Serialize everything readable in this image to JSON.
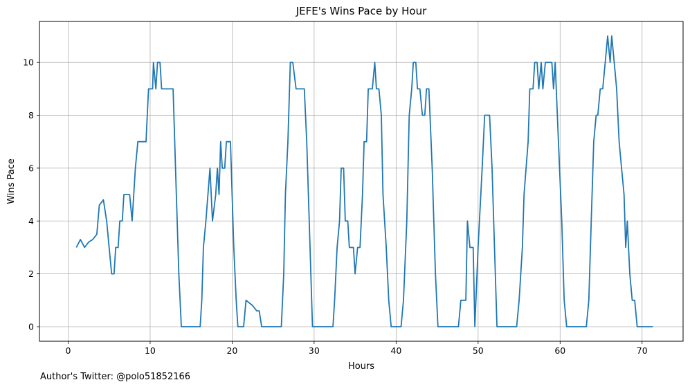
{
  "chart_data": {
    "type": "line",
    "title": "JEFE's Wins Pace by Hour",
    "xlabel": "Hours",
    "ylabel": "Wins Pace",
    "xlim": [
      -3.5,
      75
    ],
    "ylim": [
      -0.55,
      11.55
    ],
    "x_ticks": [
      0,
      10,
      20,
      30,
      40,
      50,
      60,
      70
    ],
    "y_ticks": [
      0,
      2,
      4,
      6,
      8,
      10
    ],
    "grid": true,
    "legend": "none",
    "series": [
      {
        "color": "#1f77b4",
        "points": [
          [
            1.0,
            3.0
          ],
          [
            1.5,
            3.3
          ],
          [
            2.0,
            3.0
          ],
          [
            2.5,
            3.2
          ],
          [
            3.0,
            3.3
          ],
          [
            3.5,
            3.5
          ],
          [
            3.8,
            4.6
          ],
          [
            4.3,
            4.8
          ],
          [
            4.7,
            4.0
          ],
          [
            5.0,
            3.0
          ],
          [
            5.3,
            2.0
          ],
          [
            5.6,
            2.0
          ],
          [
            5.8,
            3.0
          ],
          [
            6.1,
            3.0
          ],
          [
            6.3,
            4.0
          ],
          [
            6.6,
            4.0
          ],
          [
            6.8,
            5.0
          ],
          [
            7.2,
            5.0
          ],
          [
            7.5,
            5.0
          ],
          [
            7.8,
            4.0
          ],
          [
            8.2,
            6.0
          ],
          [
            8.5,
            7.0
          ],
          [
            9.0,
            7.0
          ],
          [
            9.5,
            7.0
          ],
          [
            9.8,
            9.0
          ],
          [
            10.3,
            9.0
          ],
          [
            10.4,
            10.0
          ],
          [
            10.7,
            9.0
          ],
          [
            10.9,
            10.0
          ],
          [
            11.2,
            10.0
          ],
          [
            11.4,
            9.0
          ],
          [
            12.0,
            9.0
          ],
          [
            12.5,
            9.0
          ],
          [
            12.8,
            9.0
          ],
          [
            13.2,
            5.0
          ],
          [
            13.5,
            2.0
          ],
          [
            13.8,
            0.0
          ],
          [
            14.5,
            0.0
          ],
          [
            15.5,
            0.0
          ],
          [
            16.1,
            0.0
          ],
          [
            16.3,
            1.0
          ],
          [
            16.5,
            3.0
          ],
          [
            16.8,
            4.0
          ],
          [
            17.3,
            6.0
          ],
          [
            17.6,
            4.0
          ],
          [
            18.0,
            5.0
          ],
          [
            18.2,
            6.0
          ],
          [
            18.4,
            5.0
          ],
          [
            18.6,
            7.0
          ],
          [
            18.8,
            6.0
          ],
          [
            19.1,
            6.0
          ],
          [
            19.3,
            7.0
          ],
          [
            19.8,
            7.0
          ],
          [
            20.2,
            3.0
          ],
          [
            20.5,
            1.0
          ],
          [
            20.7,
            0.0
          ],
          [
            21.4,
            0.0
          ],
          [
            21.7,
            1.0
          ],
          [
            22.5,
            0.8
          ],
          [
            23.0,
            0.6
          ],
          [
            23.3,
            0.6
          ],
          [
            23.6,
            0.0
          ],
          [
            24.5,
            0.0
          ],
          [
            25.5,
            0.0
          ],
          [
            26.0,
            0.0
          ],
          [
            26.3,
            2.0
          ],
          [
            26.5,
            5.0
          ],
          [
            26.8,
            7.0
          ],
          [
            27.1,
            10.0
          ],
          [
            27.4,
            10.0
          ],
          [
            27.8,
            9.0
          ],
          [
            28.4,
            9.0
          ],
          [
            28.8,
            9.0
          ],
          [
            29.1,
            7.0
          ],
          [
            29.5,
            3.0
          ],
          [
            29.8,
            0.0
          ],
          [
            30.5,
            0.0
          ],
          [
            31.5,
            0.0
          ],
          [
            32.3,
            0.0
          ],
          [
            32.5,
            1.0
          ],
          [
            32.8,
            3.0
          ],
          [
            33.1,
            4.0
          ],
          [
            33.3,
            6.0
          ],
          [
            33.6,
            6.0
          ],
          [
            33.8,
            4.0
          ],
          [
            34.1,
            4.0
          ],
          [
            34.3,
            3.0
          ],
          [
            34.8,
            3.0
          ],
          [
            35.0,
            2.0
          ],
          [
            35.3,
            3.0
          ],
          [
            35.6,
            3.0
          ],
          [
            35.9,
            5.0
          ],
          [
            36.1,
            7.0
          ],
          [
            36.4,
            7.0
          ],
          [
            36.6,
            9.0
          ],
          [
            37.1,
            9.0
          ],
          [
            37.4,
            10.0
          ],
          [
            37.6,
            9.0
          ],
          [
            37.9,
            9.0
          ],
          [
            38.2,
            8.0
          ],
          [
            38.4,
            5.0
          ],
          [
            38.8,
            3.0
          ],
          [
            39.1,
            1.0
          ],
          [
            39.4,
            0.0
          ],
          [
            40.2,
            0.0
          ],
          [
            40.3,
            0.0
          ],
          [
            40.6,
            0.0
          ],
          [
            40.9,
            1.0
          ],
          [
            41.3,
            4.0
          ],
          [
            41.6,
            8.0
          ],
          [
            41.9,
            9.0
          ],
          [
            42.1,
            10.0
          ],
          [
            42.4,
            10.0
          ],
          [
            42.6,
            9.0
          ],
          [
            42.9,
            9.0
          ],
          [
            43.2,
            8.0
          ],
          [
            43.5,
            8.0
          ],
          [
            43.7,
            9.0
          ],
          [
            44.0,
            9.0
          ],
          [
            44.4,
            6.0
          ],
          [
            44.6,
            4.0
          ],
          [
            44.8,
            2.0
          ],
          [
            45.1,
            0.0
          ],
          [
            46.0,
            0.0
          ],
          [
            47.0,
            0.0
          ],
          [
            47.6,
            0.0
          ],
          [
            47.9,
            1.0
          ],
          [
            48.5,
            1.0
          ],
          [
            48.7,
            4.0
          ],
          [
            49.0,
            3.0
          ],
          [
            49.4,
            3.0
          ],
          [
            49.6,
            0.0
          ],
          [
            50.0,
            3.0
          ],
          [
            50.5,
            6.0
          ],
          [
            50.8,
            8.0
          ],
          [
            51.4,
            8.0
          ],
          [
            51.7,
            6.0
          ],
          [
            52.0,
            3.0
          ],
          [
            52.3,
            0.0
          ],
          [
            53.0,
            0.0
          ],
          [
            54.0,
            0.0
          ],
          [
            54.5,
            0.0
          ],
          [
            54.7,
            0.0
          ],
          [
            55.0,
            1.0
          ],
          [
            55.4,
            3.0
          ],
          [
            55.6,
            5.0
          ],
          [
            56.1,
            7.0
          ],
          [
            56.3,
            9.0
          ],
          [
            56.7,
            9.0
          ],
          [
            56.9,
            10.0
          ],
          [
            57.2,
            10.0
          ],
          [
            57.4,
            9.0
          ],
          [
            57.7,
            10.0
          ],
          [
            57.9,
            9.0
          ],
          [
            58.2,
            10.0
          ],
          [
            58.6,
            10.0
          ],
          [
            59.0,
            10.0
          ],
          [
            59.2,
            9.0
          ],
          [
            59.4,
            10.0
          ],
          [
            59.8,
            7.0
          ],
          [
            60.2,
            4.0
          ],
          [
            60.5,
            1.0
          ],
          [
            60.8,
            0.0
          ],
          [
            61.5,
            0.0
          ],
          [
            62.5,
            0.0
          ],
          [
            63.2,
            0.0
          ],
          [
            63.5,
            1.0
          ],
          [
            63.8,
            4.0
          ],
          [
            64.1,
            7.0
          ],
          [
            64.4,
            8.0
          ],
          [
            64.6,
            8.0
          ],
          [
            64.9,
            9.0
          ],
          [
            65.2,
            9.0
          ],
          [
            65.5,
            10.0
          ],
          [
            65.8,
            11.0
          ],
          [
            66.1,
            10.0
          ],
          [
            66.3,
            11.0
          ],
          [
            66.6,
            10.0
          ],
          [
            66.9,
            9.0
          ],
          [
            67.2,
            7.0
          ],
          [
            67.5,
            6.0
          ],
          [
            67.8,
            5.0
          ],
          [
            68.0,
            3.0
          ],
          [
            68.2,
            4.0
          ],
          [
            68.5,
            2.0
          ],
          [
            68.8,
            1.0
          ],
          [
            69.1,
            1.0
          ],
          [
            69.4,
            0.0
          ],
          [
            70.0,
            0.0
          ],
          [
            71.3,
            0.0
          ]
        ]
      }
    ]
  },
  "footnote": "Author's Twitter: @polo51852166"
}
